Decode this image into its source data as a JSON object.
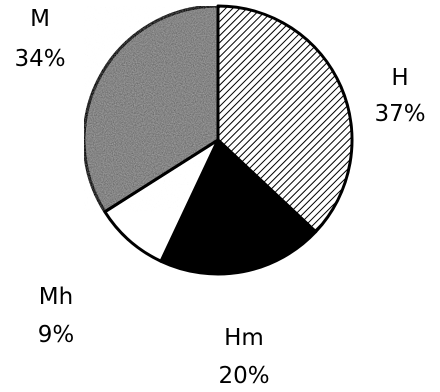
{
  "chart_data": {
    "type": "pie",
    "title": "",
    "slices": [
      {
        "name": "H",
        "label": "H",
        "percent_label": "37%",
        "value": 37,
        "fill": "hatch"
      },
      {
        "name": "Hm",
        "label": "Hm",
        "percent_label": "20%",
        "value": 20,
        "fill": "#000000"
      },
      {
        "name": "Mh",
        "label": "Mh",
        "percent_label": "9%",
        "value": 9,
        "fill": "#ffffff"
      },
      {
        "name": "M",
        "label": "M",
        "percent_label": "34%",
        "value": 34,
        "fill": "#8a8a8a"
      }
    ],
    "start_angle_deg": 0,
    "direction": "clockwise"
  }
}
